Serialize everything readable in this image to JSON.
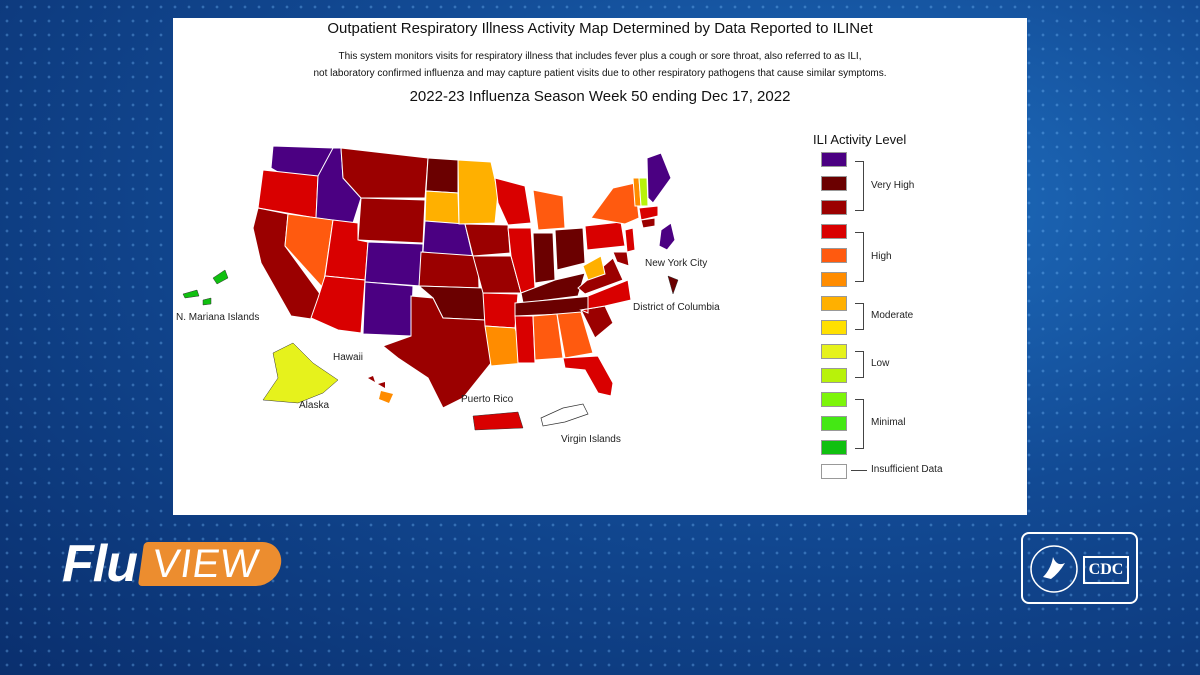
{
  "map": {
    "title": "Outpatient Respiratory Illness Activity Map Determined by Data Reported to ILINet",
    "subtitle_line1": "This system monitors visits for respiratory illness that includes fever plus a cough or sore throat, also referred to as ILI,",
    "subtitle_line2": "not laboratory confirmed influenza and may capture patient visits due to other respiratory pathogens that cause similar symptoms.",
    "week": "2022-23 Influenza Season Week 50 ending Dec 17, 2022",
    "labels": {
      "new_york_city": "New York City",
      "dc": "District of Columbia",
      "mariana": "N. Mariana Islands",
      "hawaii": "Hawaii",
      "alaska": "Alaska",
      "puerto_rico": "Puerto Rico",
      "virgin_islands": "Virgin Islands"
    }
  },
  "legend": {
    "title": "ILI Activity Level",
    "levels": [
      {
        "color": "#4b0082"
      },
      {
        "color": "#6b0000"
      },
      {
        "color": "#9b0000"
      },
      {
        "color": "#d90000"
      },
      {
        "color": "#ff5a0f"
      },
      {
        "color": "#ff8c00"
      },
      {
        "color": "#ffb000"
      },
      {
        "color": "#ffe000"
      },
      {
        "color": "#e6f21c"
      },
      {
        "color": "#b8f20a"
      },
      {
        "color": "#7df50a"
      },
      {
        "color": "#44e814"
      },
      {
        "color": "#10c010"
      },
      {
        "color": "#ffffff"
      }
    ],
    "group_labels": {
      "very_high": "Very High",
      "high": "High",
      "moderate": "Moderate",
      "low": "Low",
      "minimal": "Minimal",
      "insufficient": "Insufficient Data"
    }
  },
  "branding": {
    "flu": "Flu",
    "view": "VIEW",
    "cdc": "CDC"
  }
}
